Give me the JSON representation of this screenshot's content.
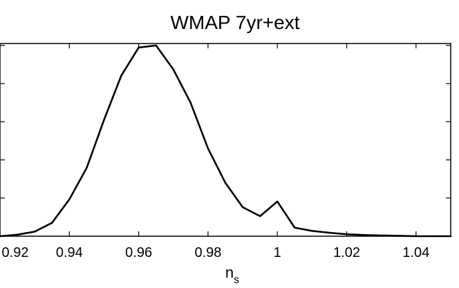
{
  "chart_data": {
    "type": "line",
    "title": "WMAP 7yr+ext",
    "xlabel": "n",
    "xlabel_subscript": "s",
    "ylabel": "",
    "xlim": [
      0.92,
      1.05
    ],
    "ylim": [
      0,
      1.01
    ],
    "x_ticks": [
      0.92,
      0.94,
      0.96,
      0.98,
      1.0,
      1.02,
      1.04
    ],
    "x_tick_labels": [
      "0.92",
      "0.94",
      "0.96",
      "0.98",
      "1",
      "1.02",
      "1.04"
    ],
    "y_ticks": [
      0.2,
      0.4,
      0.6,
      0.8,
      1.0
    ],
    "y_tick_labels_shown": false,
    "grid": false,
    "series": [
      {
        "x": [
          0.92,
          0.925,
          0.93,
          0.935,
          0.94,
          0.945,
          0.95,
          0.955,
          0.96,
          0.965,
          0.97,
          0.975,
          0.98,
          0.985,
          0.99,
          0.995,
          1.0,
          1.005,
          1.01,
          1.015,
          1.02,
          1.025,
          1.03,
          1.035,
          1.04,
          1.045,
          1.05
        ],
        "y": [
          0.0,
          0.008,
          0.024,
          0.07,
          0.193,
          0.358,
          0.61,
          0.842,
          0.989,
          1.0,
          0.874,
          0.699,
          0.46,
          0.28,
          0.152,
          0.105,
          0.182,
          0.045,
          0.028,
          0.018,
          0.01,
          0.006,
          0.004,
          0.002,
          0.0,
          0.0,
          0.0
        ]
      }
    ]
  }
}
